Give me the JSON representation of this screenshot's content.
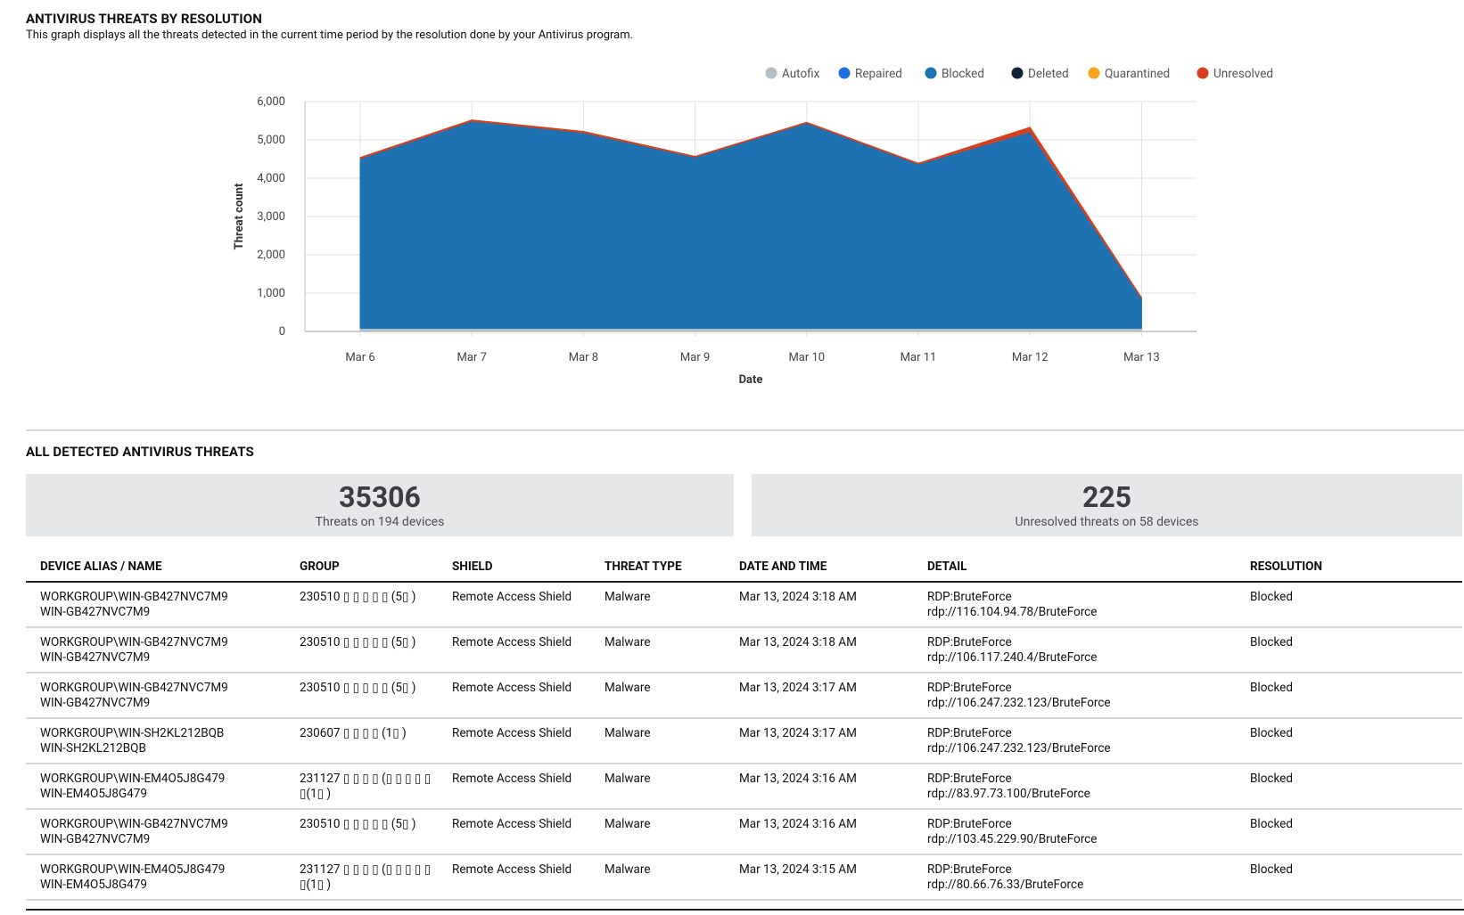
{
  "chart_section": {
    "title": "ANTIVIRUS THREATS BY RESOLUTION",
    "description": "This graph displays all the threats detected in the current time period by the resolution done by your Antivirus program."
  },
  "chart_data": {
    "type": "area",
    "xlabel": "Date",
    "ylabel": "Threat count",
    "ylim": [
      0,
      6000
    ],
    "yticks": [
      "0",
      "1,000",
      "2,000",
      "3,000",
      "4,000",
      "5,000",
      "6,000"
    ],
    "categories": [
      "Mar 6",
      "Mar 7",
      "Mar 8",
      "Mar 9",
      "Mar 10",
      "Mar 11",
      "Mar 12",
      "Mar 13"
    ],
    "grid": true,
    "legend_position": "top-right",
    "stacked": true,
    "series": [
      {
        "name": "Autofix",
        "color": "#b7bcc3",
        "values": [
          80,
          80,
          80,
          80,
          80,
          80,
          80,
          80
        ]
      },
      {
        "name": "Repaired",
        "color": "#1f6fe0",
        "values": [
          0,
          0,
          0,
          0,
          0,
          0,
          0,
          0
        ]
      },
      {
        "name": "Blocked",
        "color": "#1f72b1",
        "values": [
          4430,
          5410,
          5110,
          4470,
          5360,
          4290,
          5130,
          780
        ]
      },
      {
        "name": "Deleted",
        "color": "#0e2338",
        "values": [
          0,
          0,
          0,
          0,
          0,
          0,
          0,
          0
        ]
      },
      {
        "name": "Quarantined",
        "color": "#f7a21b",
        "values": [
          0,
          0,
          0,
          0,
          0,
          0,
          0,
          0
        ]
      },
      {
        "name": "Unresolved",
        "color": "#d6401e",
        "values": [
          30,
          30,
          30,
          20,
          20,
          20,
          120,
          20
        ]
      }
    ]
  },
  "threats_section": {
    "title": "ALL DETECTED ANTIVIRUS THREATS"
  },
  "stats": {
    "total_threats": "35306",
    "total_label": "Threats on 194 devices",
    "unresolved": "225",
    "unresolved_label": "Unresolved threats on 58 devices"
  },
  "table": {
    "headers": [
      "DEVICE ALIAS / NAME",
      "GROUP",
      "SHIELD",
      "THREAT TYPE",
      "DATE AND TIME",
      "DETAIL",
      "RESOLUTION"
    ],
    "rows": [
      {
        "alias": "WORKGROUP\\WIN-GB427NVC7M9",
        "name": "WIN-GB427NVC7M9",
        "group": "230510 ▯ ▯ ▯ ▯ ▯ (5▯ )",
        "shield": "Remote Access Shield",
        "type": "Malware",
        "datetime": "Mar 13, 2024 3:18 AM",
        "detail1": "RDP:BruteForce",
        "detail2": "rdp://116.104.94.78/BruteForce",
        "resolution": "Blocked"
      },
      {
        "alias": "WORKGROUP\\WIN-GB427NVC7M9",
        "name": "WIN-GB427NVC7M9",
        "group": "230510 ▯ ▯ ▯ ▯ ▯ (5▯ )",
        "shield": "Remote Access Shield",
        "type": "Malware",
        "datetime": "Mar 13, 2024 3:18 AM",
        "detail1": "RDP:BruteForce",
        "detail2": "rdp://106.117.240.4/BruteForce",
        "resolution": "Blocked"
      },
      {
        "alias": "WORKGROUP\\WIN-GB427NVC7M9",
        "name": "WIN-GB427NVC7M9",
        "group": "230510 ▯ ▯ ▯ ▯ ▯ (5▯ )",
        "shield": "Remote Access Shield",
        "type": "Malware",
        "datetime": "Mar 13, 2024 3:17 AM",
        "detail1": "RDP:BruteForce",
        "detail2": "rdp://106.247.232.123/BruteForce",
        "resolution": "Blocked"
      },
      {
        "alias": "WORKGROUP\\WIN-SH2KL212BQB",
        "name": "WIN-SH2KL212BQB",
        "group": "230607 ▯ ▯ ▯ ▯ (1▯ )",
        "shield": "Remote Access Shield",
        "type": "Malware",
        "datetime": "Mar 13, 2024 3:17 AM",
        "detail1": "RDP:BruteForce",
        "detail2": "rdp://106.247.232.123/BruteForce",
        "resolution": "Blocked"
      },
      {
        "alias": "WORKGROUP\\WIN-EM4O5J8G479",
        "name": "WIN-EM4O5J8G479",
        "group": "231127 ▯ ▯ ▯ ▯ (▯ ▯ ▯ ▯ ▯ ▯(1▯ )",
        "shield": "Remote Access Shield",
        "type": "Malware",
        "datetime": "Mar 13, 2024 3:16 AM",
        "detail1": "RDP:BruteForce",
        "detail2": "rdp://83.97.73.100/BruteForce",
        "resolution": "Blocked"
      },
      {
        "alias": "WORKGROUP\\WIN-GB427NVC7M9",
        "name": "WIN-GB427NVC7M9",
        "group": "230510 ▯ ▯ ▯ ▯ ▯ (5▯ )",
        "shield": "Remote Access Shield",
        "type": "Malware",
        "datetime": "Mar 13, 2024 3:16 AM",
        "detail1": "RDP:BruteForce",
        "detail2": "rdp://103.45.229.90/BruteForce",
        "resolution": "Blocked"
      },
      {
        "alias": "WORKGROUP\\WIN-EM4O5J8G479",
        "name": "WIN-EM4O5J8G479",
        "group": "231127 ▯ ▯ ▯ ▯ (▯ ▯ ▯ ▯ ▯ ▯(1▯ )",
        "shield": "Remote Access Shield",
        "type": "Malware",
        "datetime": "Mar 13, 2024 3:15 AM",
        "detail1": "RDP:BruteForce",
        "detail2": "rdp://80.66.76.33/BruteForce",
        "resolution": "Blocked"
      }
    ]
  }
}
